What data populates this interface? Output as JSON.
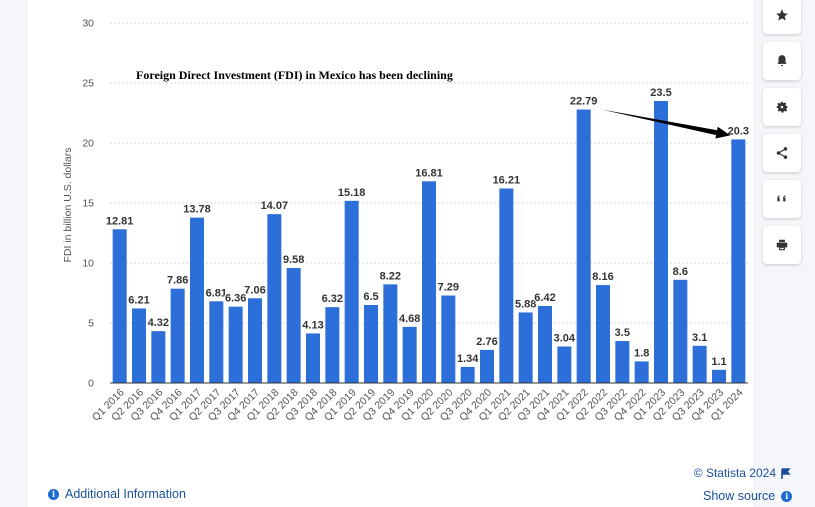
{
  "toolbar": {
    "buttons": [
      {
        "name": "favorite-button",
        "icon": "star-icon"
      },
      {
        "name": "notification-button",
        "icon": "bell-icon"
      },
      {
        "name": "settings-button",
        "icon": "gear-icon"
      },
      {
        "name": "share-button",
        "icon": "share-icon"
      },
      {
        "name": "cite-button",
        "icon": "quote-icon"
      },
      {
        "name": "print-button",
        "icon": "printer-icon"
      }
    ]
  },
  "footer": {
    "additional_info": "Additional Information",
    "credit": "© Statista 2024",
    "show_source": "Show source"
  },
  "colors": {
    "bar": "#2d6fd8",
    "annotation_arrow": "#000000",
    "grid": "#d7d7d7",
    "axis_text": "#555555"
  },
  "chart_data": {
    "type": "bar",
    "title": "",
    "annotation": "Foreign Direct Investment (FDI) in Mexico has been declining",
    "xlabel": "",
    "ylabel": "FDI in billion U.S. dollars",
    "ylim": [
      0,
      30
    ],
    "yticks": [
      0,
      5,
      10,
      15,
      20,
      25,
      30
    ],
    "grid": true,
    "categories": [
      "Q1 2016",
      "Q2 2016",
      "Q3 2016",
      "Q4 2016",
      "Q1 2017",
      "Q2 2017",
      "Q3 2017",
      "Q4 2017",
      "Q1 2018",
      "Q2 2018",
      "Q3 2018",
      "Q4 2018",
      "Q1 2019",
      "Q2 2019",
      "Q3 2019",
      "Q4 2019",
      "Q1 2020",
      "Q2 2020",
      "Q3 2020",
      "Q4 2020",
      "Q1 2021",
      "Q2 2021",
      "Q3 2021",
      "Q4 2021",
      "Q1 2022",
      "Q2 2022",
      "Q3 2022",
      "Q4 2022",
      "Q1 2023",
      "Q2 2023",
      "Q3 2023",
      "Q4 2023",
      "Q1 2024"
    ],
    "values": [
      12.81,
      6.21,
      4.32,
      7.86,
      13.78,
      6.81,
      6.36,
      7.06,
      14.07,
      9.58,
      4.13,
      6.32,
      15.18,
      6.5,
      8.22,
      4.68,
      16.81,
      7.29,
      1.34,
      2.76,
      16.21,
      5.88,
      6.42,
      3.04,
      22.79,
      8.16,
      3.5,
      1.8,
      23.5,
      8.6,
      3.1,
      1.1,
      20.3
    ],
    "value_labels": [
      "12.81",
      "6.21",
      "4.32",
      "7.86",
      "13.78",
      "6.81",
      "6.36",
      "7.06",
      "14.07",
      "9.58",
      "4.13",
      "6.32",
      "15.18",
      "6.5",
      "8.22",
      "4.68",
      "16.81",
      "7.29",
      "1.34",
      "2.76",
      "16.21",
      "5.88",
      "6.42",
      "3.04",
      "22.79",
      "8.16",
      "3.5",
      "1.8",
      "23.5",
      "8.6",
      "3.1",
      "1.1",
      "20.3"
    ],
    "arrow": {
      "from_category": "Q1 2022",
      "to_category": "Q1 2024"
    }
  }
}
